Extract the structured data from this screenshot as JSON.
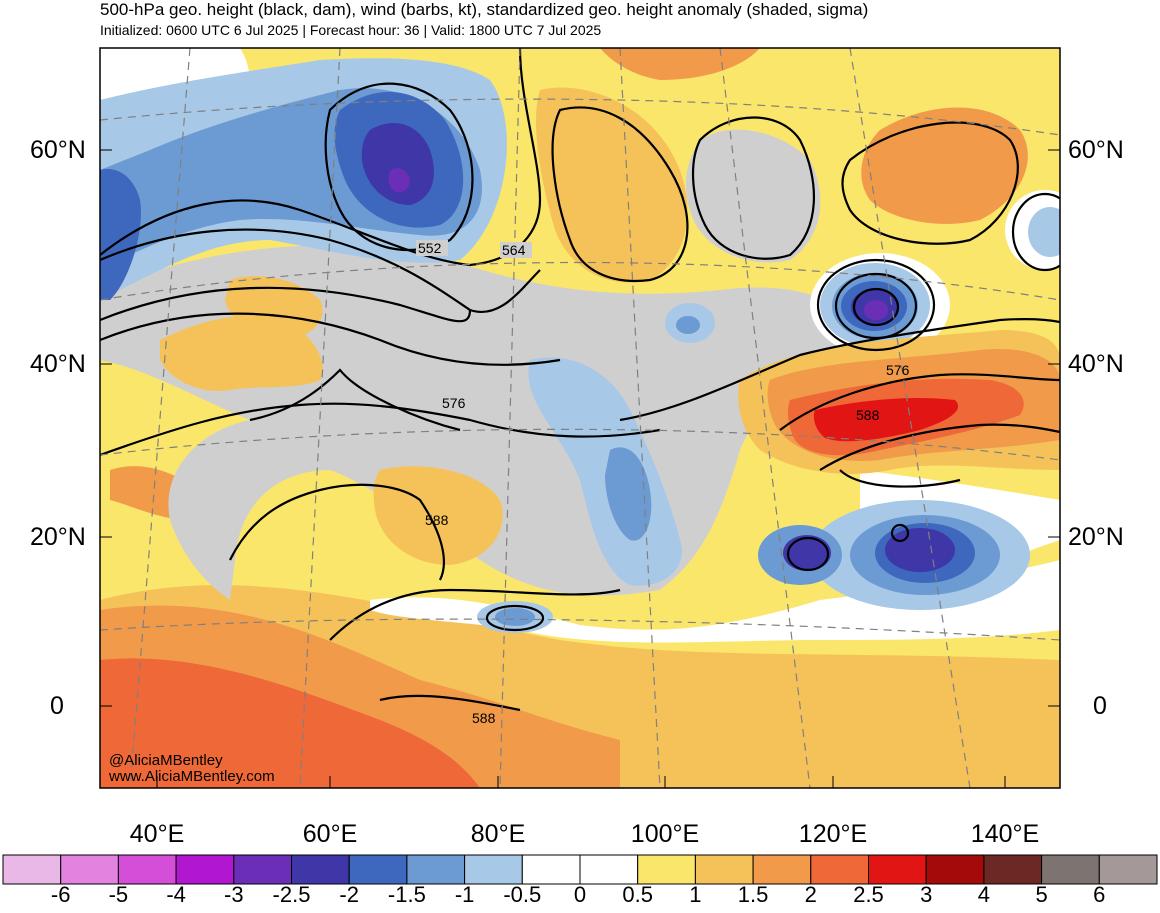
{
  "header": {
    "title": "500-hPa geo. height (black, dam), wind (barbs, kt), standardized geo. height anomaly (shaded, sigma)",
    "subtitle": "Initialized: 0600 UTC 6 Jul 2025 | Forecast hour: 36 | Valid: 1800 UTC 7 Jul 2025"
  },
  "axes": {
    "lat_labels": [
      "60°N",
      "40°N",
      "20°N",
      "0"
    ],
    "lon_labels": [
      "40°E",
      "60°E",
      "80°E",
      "100°E",
      "120°E",
      "140°E"
    ]
  },
  "contour_labels": [
    "552",
    "564",
    "576",
    "576",
    "588",
    "588",
    "588"
  ],
  "credits": {
    "handle": "@AliciaMBentley",
    "website": "www.AliciaMBentley.com"
  },
  "colorbar": {
    "ticks": [
      "-6",
      "-5",
      "-4",
      "-3",
      "-2.5",
      "-2",
      "-1.5",
      "-1",
      "-0.5",
      "0",
      "0.5",
      "1",
      "1.5",
      "2",
      "2.5",
      "3",
      "4",
      "5",
      "6"
    ],
    "colors": [
      "#e9b8e6",
      "#e283e0",
      "#d54ed8",
      "#b117d1",
      "#6a2fb6",
      "#3f36a8",
      "#3d68be",
      "#6c9ad2",
      "#a7c8e6",
      "#ffffff",
      "#ffffff",
      "#fbe66c",
      "#f5c25a",
      "#f09a4a",
      "#ee6838",
      "#e21515",
      "#a40a0a",
      "#6b2824",
      "#7d7370",
      "#a49898"
    ]
  }
}
